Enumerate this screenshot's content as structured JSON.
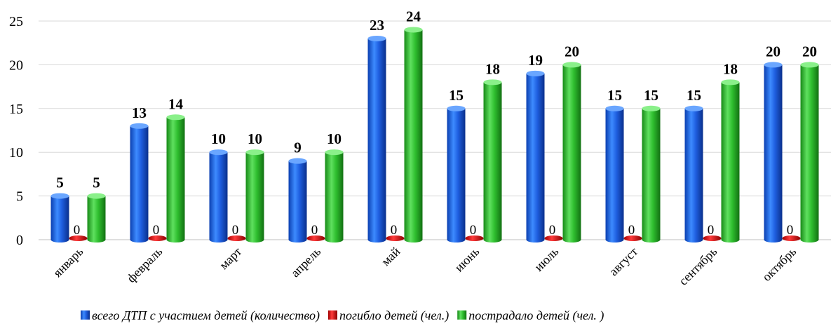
{
  "chart_data": {
    "type": "bar",
    "categories": [
      "январь",
      "февраль",
      "март",
      "апрель",
      "май",
      "июнь",
      "июль",
      "август",
      "сентябрь",
      "октябрь"
    ],
    "series": [
      {
        "name": "всего ДТП с участием детей (количество)",
        "values": [
          5,
          13,
          10,
          9,
          23,
          15,
          19,
          15,
          15,
          20
        ],
        "color": "#1f5fe0"
      },
      {
        "name": "погибло детей (чел.)",
        "values": [
          0,
          0,
          0,
          0,
          0,
          0,
          0,
          0,
          0,
          0
        ],
        "color": "#e01010"
      },
      {
        "name": "пострадало детей (чел. )",
        "values": [
          5,
          14,
          10,
          10,
          24,
          18,
          20,
          15,
          18,
          20
        ],
        "color": "#2fbf2f"
      }
    ],
    "ylim": [
      0,
      25
    ],
    "yticks": [
      0,
      5,
      10,
      15,
      20,
      25
    ],
    "grid": true,
    "legend_position": "bottom",
    "title": "",
    "xlabel": "",
    "ylabel": ""
  }
}
